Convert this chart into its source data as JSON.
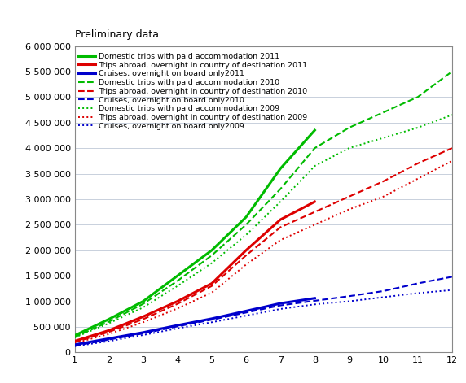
{
  "title": "Preliminary data",
  "months_2011": [
    1,
    2,
    3,
    4,
    5,
    6,
    7,
    8
  ],
  "months_2010": [
    1,
    2,
    3,
    4,
    5,
    6,
    7,
    8,
    9,
    10,
    11,
    12
  ],
  "months_2009": [
    1,
    2,
    3,
    4,
    5,
    6,
    7,
    8,
    9,
    10,
    11,
    12
  ],
  "domestic_2011": [
    330000,
    650000,
    1000000,
    1500000,
    2000000,
    2650000,
    3600000,
    4350000
  ],
  "abroad_2011": [
    220000,
    430000,
    700000,
    1000000,
    1350000,
    2000000,
    2600000,
    2950000
  ],
  "cruises_2011": [
    150000,
    270000,
    390000,
    530000,
    660000,
    810000,
    960000,
    1060000
  ],
  "domestic_2010": [
    300000,
    600000,
    950000,
    1400000,
    1900000,
    2500000,
    3200000,
    4000000,
    4400000,
    4700000,
    5000000,
    5500000
  ],
  "abroad_2010": [
    200000,
    400000,
    650000,
    950000,
    1300000,
    1900000,
    2450000,
    2750000,
    3050000,
    3350000,
    3700000,
    4000000
  ],
  "cruises_2010": [
    130000,
    250000,
    370000,
    510000,
    640000,
    780000,
    920000,
    1010000,
    1100000,
    1200000,
    1350000,
    1480000
  ],
  "domestic_2009": [
    290000,
    570000,
    880000,
    1300000,
    1750000,
    2300000,
    2950000,
    3650000,
    4000000,
    4200000,
    4400000,
    4650000
  ],
  "abroad_2009": [
    180000,
    360000,
    590000,
    860000,
    1170000,
    1720000,
    2200000,
    2500000,
    2800000,
    3050000,
    3400000,
    3750000
  ],
  "cruises_2009": [
    120000,
    220000,
    340000,
    470000,
    590000,
    720000,
    850000,
    940000,
    1000000,
    1080000,
    1160000,
    1220000
  ],
  "color_green": "#00bb00",
  "color_red": "#dd0000",
  "color_blue": "#0000cc",
  "ylim": [
    0,
    6000000
  ],
  "xlim_min": 1,
  "xlim_max": 12,
  "yticks": [
    0,
    500000,
    1000000,
    1500000,
    2000000,
    2500000,
    3000000,
    3500000,
    4000000,
    4500000,
    5000000,
    5500000,
    6000000
  ],
  "xticks": [
    1,
    2,
    3,
    4,
    5,
    6,
    7,
    8,
    9,
    10,
    11,
    12
  ],
  "legend_entries": [
    "Domestic trips with paid accommodation 2011",
    "Trips abroad, overnight in country of destination 2011",
    "Cruises, overnight on board only2011",
    "Domestic trips with paid accommodation 2010",
    "Trips abroad, overnight in country of destination 2010",
    "Cruises, overnight on board only2010",
    "Domestic trips with paid accommodation 2009",
    "Trips abroad, overnight in country of destination 2009",
    "Cruises, overnight on board only2009"
  ],
  "lw_solid": 2.2,
  "lw_dashed": 1.5,
  "lw_dotted": 1.4,
  "grid_color": "#c8d0dc",
  "border_color": "#888888",
  "tick_label_size": 8,
  "legend_fontsize": 6.8,
  "title_fontsize": 9
}
